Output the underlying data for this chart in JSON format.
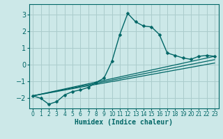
{
  "background_color": "#cce8e8",
  "grid_color": "#aacccc",
  "line_color": "#006666",
  "xlabel": "Humidex (Indice chaleur)",
  "xlim": [
    -0.5,
    23.5
  ],
  "ylim": [
    -2.6,
    3.6
  ],
  "yticks": [
    -2,
    -1,
    0,
    1,
    2,
    3
  ],
  "xticks": [
    0,
    1,
    2,
    3,
    4,
    5,
    6,
    7,
    8,
    9,
    10,
    11,
    12,
    13,
    14,
    15,
    16,
    17,
    18,
    19,
    20,
    21,
    22,
    23
  ],
  "series": [
    {
      "x": [
        0,
        1,
        2,
        3,
        4,
        5,
        6,
        7,
        8,
        9,
        10,
        11,
        12,
        13,
        14,
        15,
        16,
        17,
        18,
        19,
        20,
        21,
        22,
        23
      ],
      "y": [
        -1.85,
        -2.0,
        -2.35,
        -2.2,
        -1.8,
        -1.6,
        -1.5,
        -1.35,
        -1.05,
        -0.8,
        0.2,
        1.8,
        3.05,
        2.55,
        2.3,
        2.25,
        1.8,
        0.7,
        0.55,
        0.4,
        0.32,
        0.5,
        0.55,
        0.5
      ],
      "marker": "D",
      "markersize": 2.5,
      "linewidth": 1.0,
      "with_marker": true
    },
    {
      "x": [
        0,
        23
      ],
      "y": [
        -1.85,
        0.5
      ],
      "marker": null,
      "markersize": 0,
      "linewidth": 0.9,
      "with_marker": false
    },
    {
      "x": [
        0,
        23
      ],
      "y": [
        -1.85,
        0.3
      ],
      "marker": null,
      "markersize": 0,
      "linewidth": 0.9,
      "with_marker": false
    },
    {
      "x": [
        0,
        23
      ],
      "y": [
        -1.85,
        0.1
      ],
      "marker": null,
      "markersize": 0,
      "linewidth": 0.9,
      "with_marker": false
    }
  ]
}
